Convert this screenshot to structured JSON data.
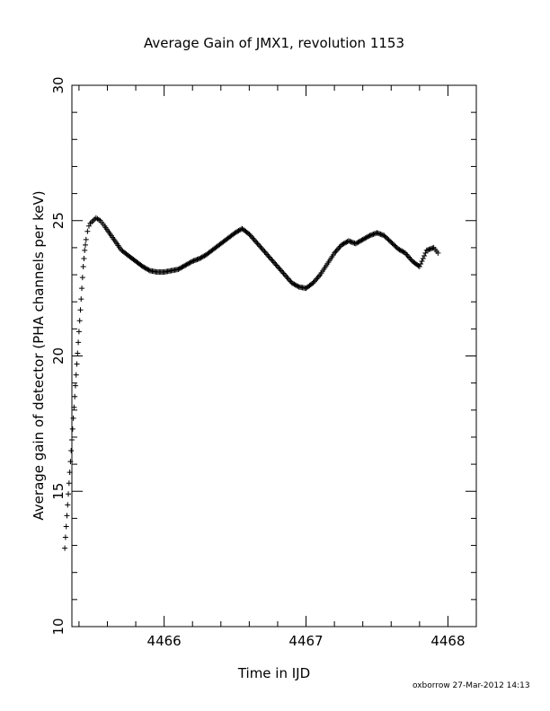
{
  "chart_data": {
    "type": "scatter",
    "title": "Average Gain of JMX1, revolution 1153",
    "xlabel": "Time in IJD",
    "ylabel": "Average gain of detector (PHA channels per keV)",
    "xlim": [
      4465.35,
      4468.2
    ],
    "ylim": [
      10,
      30
    ],
    "xticks": [
      4466,
      4467,
      4468
    ],
    "yticks": [
      10,
      15,
      20,
      25,
      30
    ],
    "marker": "plus",
    "grid": false,
    "series": [
      {
        "x": [
          4465.3,
          4465.305,
          4465.31,
          4465.315,
          4465.32,
          4465.325,
          4465.33,
          4465.335,
          4465.34,
          4465.345,
          4465.35,
          4465.355,
          4465.36,
          4465.365,
          4465.37,
          4465.375,
          4465.38,
          4465.385,
          4465.39,
          4465.395,
          4465.4,
          4465.405,
          4465.41,
          4465.415,
          4465.42,
          4465.425,
          4465.43,
          4465.435,
          4465.44,
          4465.445,
          4465.45,
          4465.46,
          4465.47,
          4465.48,
          4465.5,
          4465.52,
          4465.55,
          4465.58,
          4465.62,
          4465.66,
          4465.7,
          4465.75,
          4465.8,
          4465.85,
          4465.9,
          4465.95,
          4466.0,
          4466.05,
          4466.1,
          4466.15,
          4466.2,
          4466.25,
          4466.3,
          4466.35,
          4466.4,
          4466.45,
          4466.5,
          4466.55,
          4466.6,
          4466.65,
          4466.7,
          4466.75,
          4466.8,
          4466.85,
          4466.9,
          4466.95,
          4467.0,
          4467.05,
          4467.1,
          4467.15,
          4467.2,
          4467.25,
          4467.3,
          4467.35,
          4467.4,
          4467.45,
          4467.5,
          4467.55,
          4467.6,
          4467.65,
          4467.7,
          4467.75,
          4467.8,
          4467.85,
          4467.9,
          4467.93
        ],
        "y": [
          12.9,
          13.3,
          13.7,
          14.1,
          14.5,
          14.9,
          15.3,
          15.7,
          16.1,
          16.5,
          16.9,
          17.3,
          17.7,
          18.1,
          18.5,
          18.9,
          19.3,
          19.7,
          20.1,
          20.5,
          20.9,
          21.3,
          21.7,
          22.1,
          22.5,
          22.9,
          23.3,
          23.6,
          23.9,
          24.1,
          24.3,
          24.6,
          24.8,
          24.9,
          25.0,
          25.1,
          25.0,
          24.8,
          24.5,
          24.2,
          23.9,
          23.7,
          23.5,
          23.3,
          23.15,
          23.1,
          23.1,
          23.15,
          23.2,
          23.35,
          23.5,
          23.6,
          23.75,
          23.95,
          24.15,
          24.35,
          24.55,
          24.7,
          24.5,
          24.2,
          23.9,
          23.6,
          23.3,
          23.0,
          22.7,
          22.55,
          22.5,
          22.7,
          23.0,
          23.4,
          23.8,
          24.1,
          24.25,
          24.15,
          24.3,
          24.45,
          24.55,
          24.45,
          24.2,
          23.95,
          23.8,
          23.5,
          23.3,
          23.9,
          24.0,
          23.8
        ]
      }
    ]
  },
  "footer": "oxborrow 27-Mar-2012 14:13"
}
